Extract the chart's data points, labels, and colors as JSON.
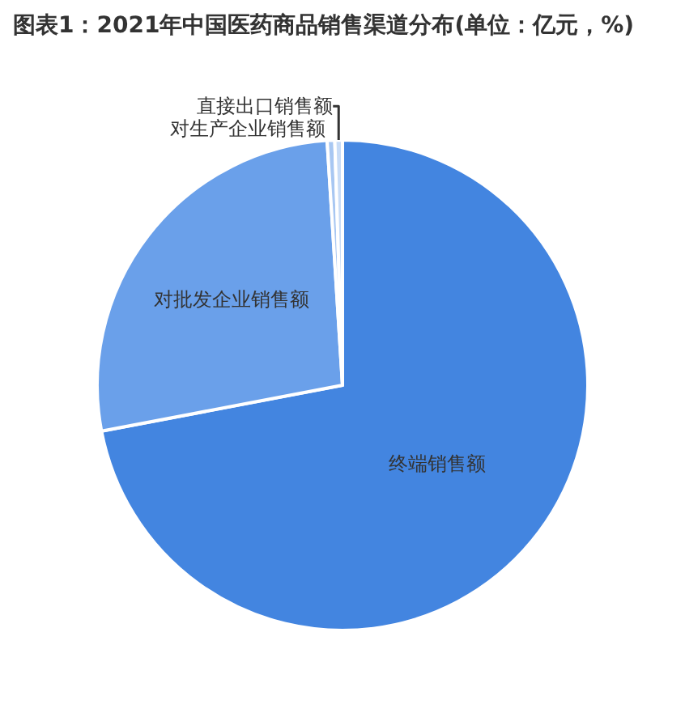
{
  "chart_data": {
    "type": "pie",
    "title": "图表1：2021年中国医药商品销售渠道分布(单位：亿元，%)",
    "categories": [
      "终端销售额",
      "对批发企业销售额",
      "对生产企业销售额",
      "直接出口销售额"
    ],
    "values": [
      72,
      27,
      0.5,
      0.5
    ],
    "colors": [
      "#4385e0",
      "#6aa0ea",
      "#a8c7f2",
      "#c8dcf7"
    ],
    "legend": false
  }
}
